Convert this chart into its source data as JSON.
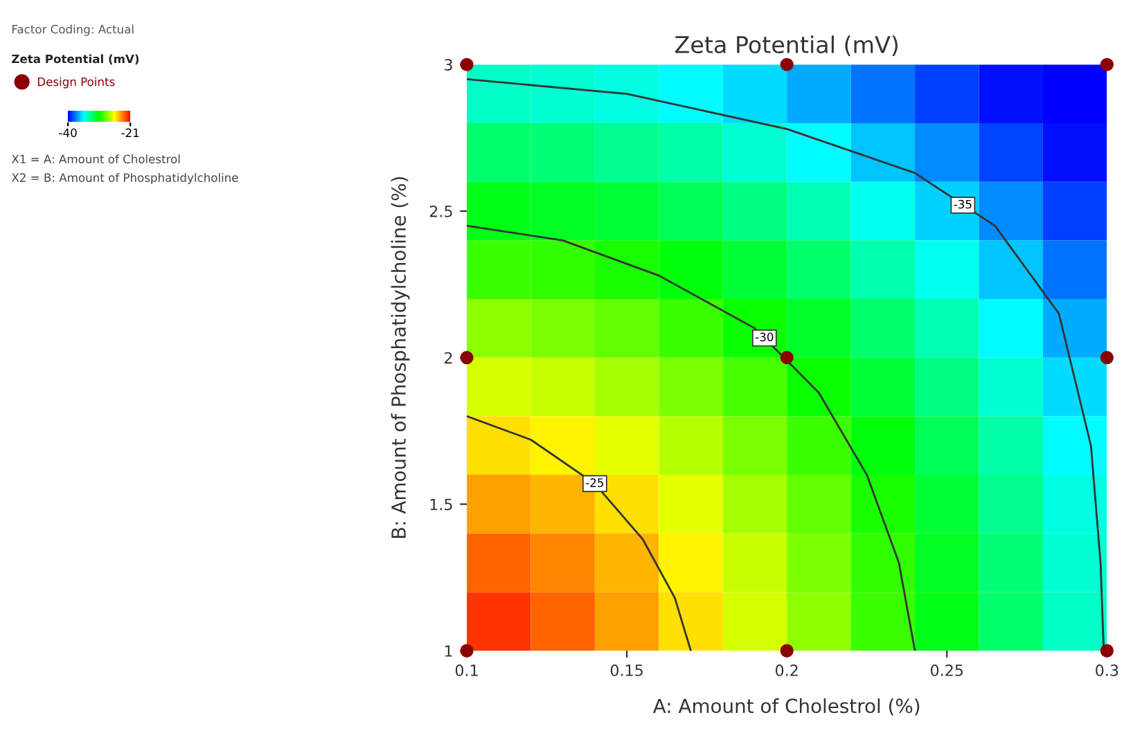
{
  "chart_data": {
    "type": "heatmap",
    "title": "Zeta Potential (mV)",
    "xlabel": "A: Amount of Cholestrol (%)",
    "ylabel": "B: Amount of Phosphatidylcholine (%)",
    "clabel": "Zeta Potential (mV)",
    "x": [
      0.11,
      0.13,
      0.15,
      0.17,
      0.19,
      0.21,
      0.23,
      0.25,
      0.27,
      0.29
    ],
    "y": [
      2.9,
      2.7,
      2.5,
      2.3,
      2.1,
      1.9,
      1.7,
      1.5,
      1.3,
      1.1
    ],
    "cells": [
      [
        -34.2,
        -34.4,
        -34.7,
        -35.3,
        -35.9,
        -36.8,
        -37.8,
        -38.8,
        -39.7,
        -40
      ],
      [
        -32.5,
        -32.7,
        -33.1,
        -33.6,
        -34.4,
        -35.3,
        -36.3,
        -37.4,
        -38.7,
        -39.7
      ],
      [
        -30.9,
        -31.1,
        -31.5,
        -32.1,
        -32.9,
        -33.8,
        -34.9,
        -36.1,
        -37.4,
        -38.8
      ],
      [
        -29.4,
        -29.6,
        -30.0,
        -30.7,
        -31.5,
        -32.5,
        -33.7,
        -34.9,
        -36.3,
        -37.8
      ],
      [
        -27.9,
        -28.2,
        -28.7,
        -29.4,
        -30.3,
        -31.3,
        -32.5,
        -33.8,
        -35.3,
        -36.8
      ],
      [
        -26.5,
        -26.8,
        -27.4,
        -28.2,
        -29.2,
        -30.3,
        -31.5,
        -32.9,
        -34.4,
        -35.9
      ],
      [
        -25.2,
        -25.6,
        -26.2,
        -27.1,
        -28.2,
        -29.4,
        -30.7,
        -32.1,
        -33.6,
        -35.3
      ],
      [
        -24.0,
        -24.4,
        -25.2,
        -26.2,
        -27.4,
        -28.7,
        -30.0,
        -31.5,
        -33.1,
        -34.7
      ],
      [
        -22.9,
        -23.5,
        -24.4,
        -25.6,
        -26.8,
        -28.2,
        -29.6,
        -31.1,
        -32.7,
        -34.4
      ],
      [
        -22.0,
        -22.9,
        -24.0,
        -25.2,
        -26.5,
        -27.9,
        -29.4,
        -30.9,
        -32.5,
        -34.2
      ]
    ],
    "colors": [
      "#0000ff",
      "#00ffff",
      "#00ff00",
      "#ffff00",
      "#ff0000"
    ],
    "clim": [
      -40,
      -21
    ],
    "cticks": [
      -40,
      -21
    ],
    "xlim": [
      0.1,
      0.3
    ],
    "xticks": [
      0.1,
      0.15,
      0.2,
      0.25,
      0.3
    ],
    "ylim": [
      1,
      3
    ],
    "yticks": [
      1,
      1.5,
      2,
      2.5,
      3
    ],
    "series": [
      {
        "type": "scatter",
        "name": "Design Points",
        "color": "#8b0000",
        "marker": "circle",
        "x": [
          0.1,
          0.2,
          0.3,
          0.1,
          0.2,
          0.3,
          0.1,
          0.2,
          0.3
        ],
        "values": [
          1,
          1,
          1,
          2,
          2,
          2,
          3,
          3,
          3
        ]
      },
      {
        "type": "line",
        "color": "#333333",
        "x": [
          0.1,
          0.12,
          0.14,
          0.155,
          0.165,
          0.17
        ],
        "values": [
          1.8,
          1.72,
          1.57,
          1.38,
          1.18,
          1.0
        ]
      },
      {
        "type": "line",
        "color": "#333333",
        "x": [
          0.1,
          0.13,
          0.16,
          0.19,
          0.21,
          0.225,
          0.235,
          0.24
        ],
        "values": [
          2.45,
          2.4,
          2.28,
          2.1,
          1.88,
          1.6,
          1.3,
          1.0
        ]
      },
      {
        "type": "line",
        "color": "#333333",
        "x": [
          0.1,
          0.15,
          0.2,
          0.24,
          0.265,
          0.285,
          0.295,
          0.298,
          0.299
        ],
        "values": [
          2.95,
          2.9,
          2.78,
          2.63,
          2.45,
          2.15,
          1.7,
          1.3,
          1.0
        ]
      }
    ],
    "legend": "top left",
    "grid": false,
    "annotations": [
      "Factor Coding: Actual",
      "X1 = A: Amount of Cholestrol",
      "X2 = B: Amount of Phosphatidylcholine",
      {
        "text": "-25",
        "x": 0.14,
        "y": 1.57
      },
      {
        "text": "-30",
        "x": 0.193,
        "y": 2.067
      },
      {
        "text": "-35",
        "x": 0.255,
        "y": 2.52
      }
    ]
  }
}
